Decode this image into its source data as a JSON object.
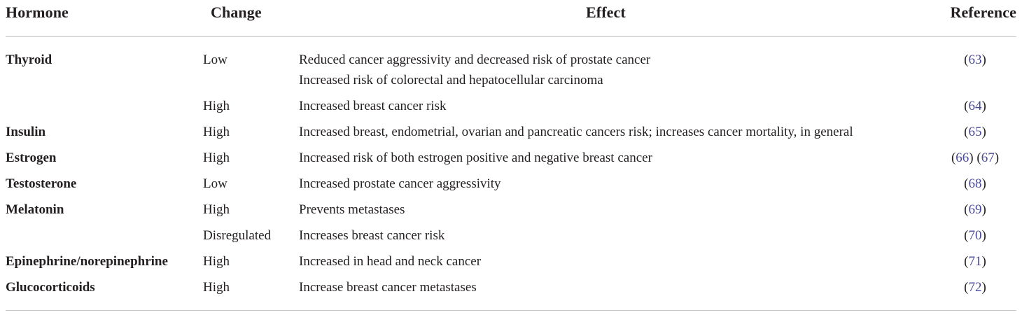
{
  "table": {
    "headers": {
      "hormone": "Hormone",
      "change": "Change",
      "effect": "Effect",
      "reference": "Reference"
    },
    "rows": [
      {
        "hormone": "Thyroid",
        "change": "Low",
        "effect": [
          "Reduced cancer aggressivity and decreased risk of prostate cancer",
          "Increased risk of colorectal and hepatocellular carcinoma"
        ],
        "refs": [
          "63"
        ]
      },
      {
        "hormone": "",
        "change": "High",
        "effect": [
          "Increased breast cancer risk"
        ],
        "refs": [
          "64"
        ]
      },
      {
        "hormone": "Insulin",
        "change": "High",
        "effect": [
          "Increased breast, endometrial, ovarian and pancreatic cancers risk; increases cancer mortality, in general"
        ],
        "refs": [
          "65"
        ]
      },
      {
        "hormone": "Estrogen",
        "change": "High",
        "effect": [
          "Increased risk of both estrogen positive and negative breast cancer"
        ],
        "refs": [
          "66",
          "67"
        ]
      },
      {
        "hormone": "Testosterone",
        "change": "Low",
        "effect": [
          "Increased prostate cancer aggressivity"
        ],
        "refs": [
          "68"
        ]
      },
      {
        "hormone": "Melatonin",
        "change": "High",
        "effect": [
          "Prevents metastases"
        ],
        "refs": [
          "69"
        ]
      },
      {
        "hormone": "",
        "change": "Disregulated",
        "effect": [
          "Increases breast cancer risk"
        ],
        "refs": [
          "70"
        ]
      },
      {
        "hormone": "Epinephrine/norepinephrine",
        "change": "High",
        "effect": [
          "Increased in head and neck cancer"
        ],
        "refs": [
          "71"
        ]
      },
      {
        "hormone": "Glucocorticoids",
        "change": "High",
        "effect": [
          "Increase breast cancer metastases"
        ],
        "refs": [
          "72"
        ]
      }
    ]
  }
}
